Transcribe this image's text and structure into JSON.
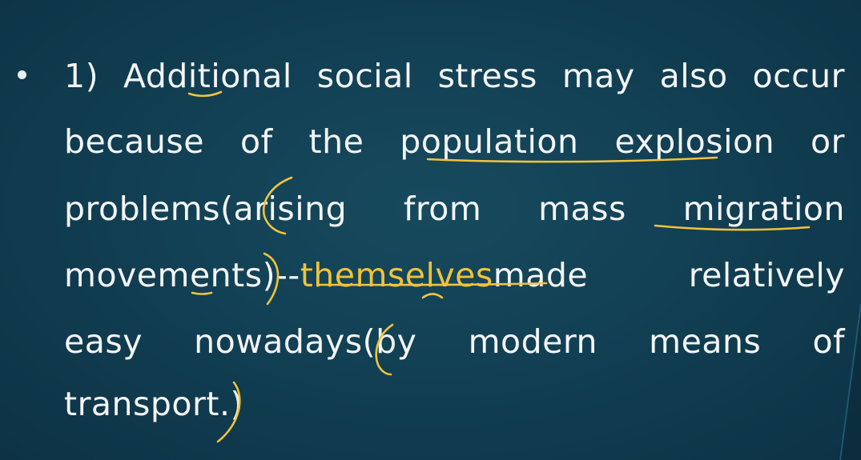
{
  "slide": {
    "bullet_text_lines": [
      "1) Additional social stress may also occur",
      "because of the population explosion or",
      "problems(arising from mass migration",
      "movements)--",
      "made relatively",
      "easy nowadays(by modern means of",
      "transport.)"
    ],
    "highlighted_word": "themselves",
    "annotation_color": "#f2c33c",
    "text_color": "#f3f5f6",
    "background_color": "#113d51"
  }
}
